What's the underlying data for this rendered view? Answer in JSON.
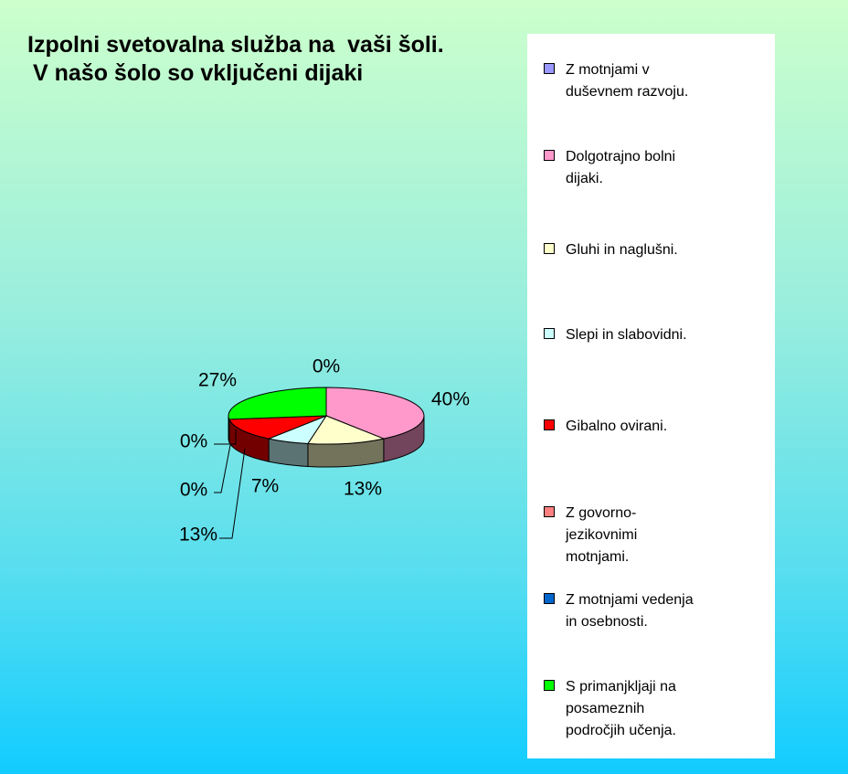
{
  "chart_data": {
    "type": "pie",
    "title": "Izpolni svetovalna služba na  vaši šoli.",
    "subtitle": "V našo šolo so vključeni dijaki",
    "categories": [
      "Z motnjami v duševnem razvoju.",
      "Dolgotrajno bolni dijaki.",
      "Gluhi in naglušni.",
      "Slepi in slabovidni.",
      "Gibalno ovirani.",
      "Z govorno-jezikovnimi motnjami.",
      "Z motnjami vedenja in osebnosti.",
      "S primanjkljaji na posameznih področjih učenja."
    ],
    "values": [
      0,
      40,
      13,
      7,
      13,
      0,
      0,
      27
    ],
    "value_labels": [
      "0%",
      "40%",
      "13%",
      "7%",
      "13%",
      "0%",
      "0%",
      "27%"
    ],
    "colors": [
      "#9999ff",
      "#ff99cc",
      "#ffffcc",
      "#ccffff",
      "#ff0000",
      "#ff8080",
      "#0066cc",
      "#00ff00"
    ],
    "legend": "right"
  }
}
